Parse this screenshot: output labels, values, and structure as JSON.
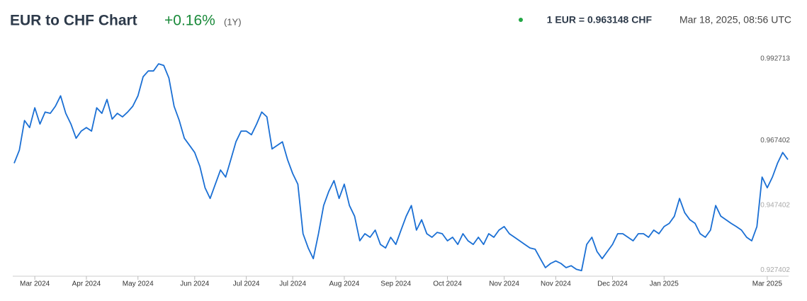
{
  "chart_data": {
    "type": "line",
    "title": "EUR to CHF Chart",
    "change": "+0.16%",
    "period": "(1Y)",
    "rate": "1 EUR = 0.963148 CHF",
    "timestamp": "Mar 18, 2025, 08:56 UTC",
    "color": "#1a6fd4",
    "xlim": [
      0,
      150
    ],
    "xticks": [
      {
        "value": 4,
        "label": "Mar 2024"
      },
      {
        "value": 14,
        "label": "Apr 2024"
      },
      {
        "value": 24,
        "label": "May 2024"
      },
      {
        "value": 35,
        "label": "Jun 2024"
      },
      {
        "value": 45,
        "label": "Jul 2024"
      },
      {
        "value": 54,
        "label": "Jul 2024"
      },
      {
        "value": 64,
        "label": "Aug 2024"
      },
      {
        "value": 74,
        "label": "Sep 2024"
      },
      {
        "value": 84,
        "label": "Oct 2024"
      },
      {
        "value": 95,
        "label": "Nov 2024"
      },
      {
        "value": 105,
        "label": "Nov 2024"
      },
      {
        "value": 116,
        "label": "Dec 2024"
      },
      {
        "value": 126,
        "label": "Jan 2025"
      },
      {
        "value": 146,
        "label": "Mar 2025"
      }
    ],
    "ylim": [
      0.9259,
      0.9955
    ],
    "yticks": [
      0.927402,
      0.947402,
      0.967402,
      0.992713
    ],
    "values": [
      0.9604,
      0.9644,
      0.9736,
      0.9714,
      0.9775,
      0.9725,
      0.9762,
      0.9758,
      0.978,
      0.9812,
      0.9758,
      0.9725,
      0.9681,
      0.9703,
      0.9714,
      0.9703,
      0.9775,
      0.9758,
      0.9801,
      0.974,
      0.9758,
      0.9747,
      0.9762,
      0.978,
      0.9812,
      0.9871,
      0.9889,
      0.9889,
      0.9911,
      0.9906,
      0.9867,
      0.978,
      0.9736,
      0.9681,
      0.9659,
      0.9637,
      0.9594,
      0.9528,
      0.9495,
      0.9539,
      0.9583,
      0.9561,
      0.9615,
      0.967,
      0.9703,
      0.9703,
      0.9692,
      0.9725,
      0.9762,
      0.9747,
      0.9648,
      0.9659,
      0.967,
      0.9615,
      0.9572,
      0.9539,
      0.9386,
      0.9342,
      0.9309,
      0.9386,
      0.9473,
      0.9517,
      0.955,
      0.9495,
      0.9539,
      0.9473,
      0.944,
      0.9364,
      0.9386,
      0.9375,
      0.9397,
      0.9353,
      0.9342,
      0.9375,
      0.9353,
      0.9397,
      0.944,
      0.9473,
      0.9397,
      0.9429,
      0.9386,
      0.9375,
      0.939,
      0.9386,
      0.9364,
      0.9375,
      0.9353,
      0.9386,
      0.9364,
      0.9353,
      0.9375,
      0.9353,
      0.9386,
      0.9375,
      0.9397,
      0.9408,
      0.9386,
      0.9375,
      0.9364,
      0.9353,
      0.9342,
      0.9338,
      0.9309,
      0.9281,
      0.9294,
      0.9302,
      0.9294,
      0.9281,
      0.9287,
      0.9276,
      0.9272,
      0.9353,
      0.9375,
      0.9331,
      0.9309,
      0.9331,
      0.9353,
      0.9386,
      0.9386,
      0.9375,
      0.9364,
      0.9386,
      0.9386,
      0.9375,
      0.9397,
      0.9386,
      0.9408,
      0.9418,
      0.944,
      0.9495,
      0.9451,
      0.9429,
      0.9418,
      0.9386,
      0.9375,
      0.9397,
      0.9473,
      0.944,
      0.9429,
      0.9418,
      0.9408,
      0.9397,
      0.9375,
      0.9364,
      0.9408,
      0.9561,
      0.9528,
      0.9561,
      0.9604,
      0.9637,
      0.9615
    ]
  }
}
